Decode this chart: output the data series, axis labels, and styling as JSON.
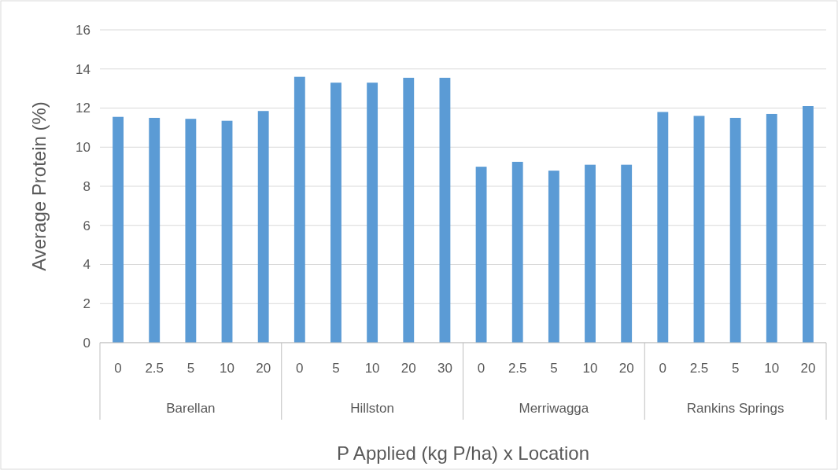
{
  "chart_data": {
    "type": "bar",
    "xlabel": "P Applied (kg P/ha) x Location",
    "ylabel": "Average Protein (%)",
    "categories": [
      "0",
      "2.5",
      "5",
      "10",
      "20",
      "0",
      "5",
      "10",
      "20",
      "30",
      "0",
      "2.5",
      "5",
      "10",
      "20",
      "0",
      "2.5",
      "5",
      "10",
      "20"
    ],
    "values": [
      11.55,
      11.5,
      11.45,
      11.35,
      11.85,
      13.6,
      13.3,
      13.3,
      13.55,
      13.55,
      9.0,
      9.25,
      8.8,
      9.1,
      9.1,
      11.8,
      11.6,
      11.5,
      11.7,
      12.1
    ],
    "color": "#5b9bd5",
    "ylim": [
      0,
      16
    ],
    "yticks": [
      0,
      2,
      4,
      6,
      8,
      10,
      12,
      14,
      16
    ],
    "grid": "y",
    "annotations": [
      "Barellan",
      "Hillston",
      "Merriwagga",
      "Rankins Springs"
    ]
  }
}
